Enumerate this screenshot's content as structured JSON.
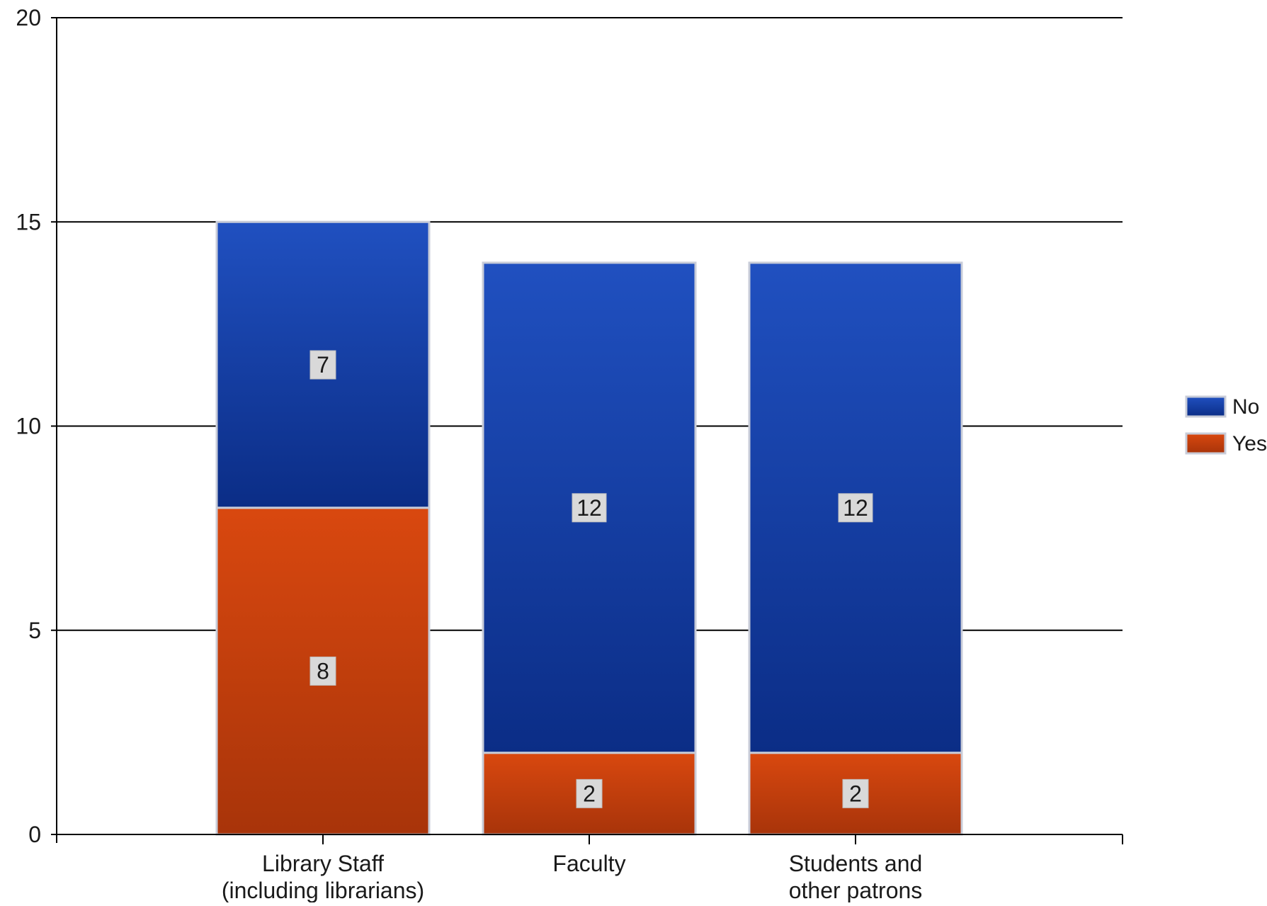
{
  "chart_data": {
    "type": "bar",
    "stacked": true,
    "categories": [
      [
        "Library Staff",
        "(including librarians)"
      ],
      [
        "Faculty"
      ],
      [
        "Students and",
        "other patrons"
      ]
    ],
    "series": [
      {
        "name": "Yes",
        "values": [
          8,
          2,
          2
        ],
        "color": "#d9480f",
        "color_dark": "#a8340a"
      },
      {
        "name": "No",
        "values": [
          7,
          12,
          12
        ],
        "color": "#2050c0",
        "color_dark": "#0b2d86"
      }
    ],
    "y_ticks": [
      "0",
      "5",
      "10",
      "15",
      "20"
    ],
    "ylim": [
      0,
      20
    ],
    "grid": true,
    "legend_position": "right",
    "legend_order": [
      "No",
      "Yes"
    ],
    "data_labels": true
  }
}
